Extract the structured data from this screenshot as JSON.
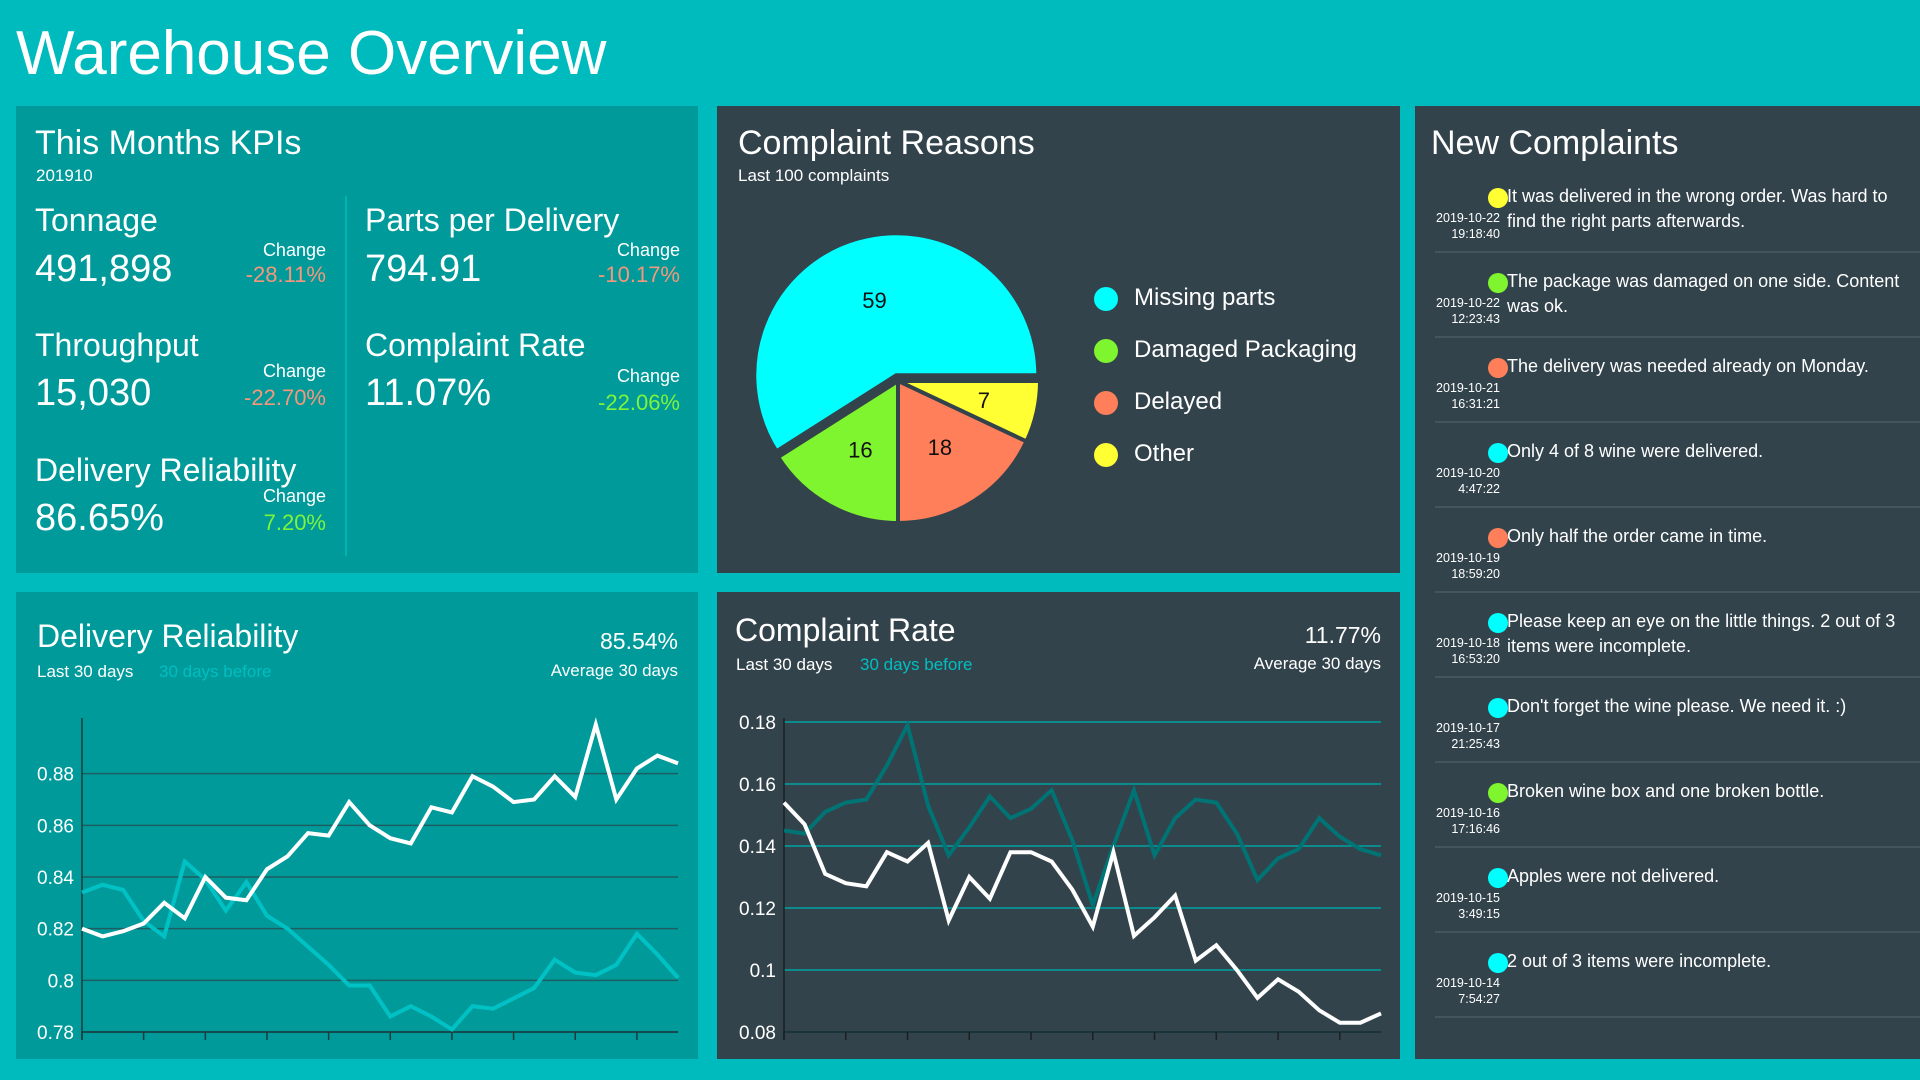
{
  "page": {
    "title": "Warehouse Overview"
  },
  "colors": {
    "background": "#00BBBE",
    "teal_panel": "#009A9B",
    "dark_panel": "#33434B",
    "negative": "#F4977A",
    "positive": "#7CF53A"
  },
  "kpis": {
    "title": "This Months KPIs",
    "period": "201910",
    "change_label": "Change",
    "items": [
      {
        "label": "Tonnage",
        "value": "491,898",
        "change": "-28.11%",
        "trend": "negative"
      },
      {
        "label": "Throughput",
        "value": "15,030",
        "change": "-22.70%",
        "trend": "negative"
      },
      {
        "label": "Delivery Reliability",
        "value": "86.65%",
        "change": "7.20%",
        "trend": "positive"
      },
      {
        "label": "Parts per Delivery",
        "value": "794.91",
        "change": "-10.17%",
        "trend": "negative"
      },
      {
        "label": "Complaint Rate",
        "value": "11.07%",
        "change": "-22.06%",
        "trend": "positive"
      }
    ]
  },
  "complaint_reasons": {
    "title": "Complaint Reasons",
    "subtitle": "Last 100 complaints"
  },
  "new_complaints": {
    "title": "New Complaints",
    "items": [
      {
        "date": "2019-10-22",
        "time": "19:18:40",
        "reason": "Other",
        "color": "#FFFF33",
        "text": "It was delivered in the wrong order. Was hard to find the right parts afterwards."
      },
      {
        "date": "2019-10-22",
        "time": "12:23:43",
        "reason": "Damaged Packaging",
        "color": "#7FF52F",
        "text": "The package was damaged on one side. Content was ok."
      },
      {
        "date": "2019-10-21",
        "time": "16:31:21",
        "reason": "Delayed",
        "color": "#FF7F5A",
        "text": "The delivery was needed already on Monday."
      },
      {
        "date": "2019-10-20",
        "time": "4:47:22",
        "reason": "Missing parts",
        "color": "#00FFFF",
        "text": "Only 4 of 8 wine were delivered."
      },
      {
        "date": "2019-10-19",
        "time": "18:59:20",
        "reason": "Delayed",
        "color": "#FF7F5A",
        "text": "Only half the order came in time."
      },
      {
        "date": "2019-10-18",
        "time": "16:53:20",
        "reason": "Missing parts",
        "color": "#00FFFF",
        "text": "Please keep an eye on the little things. 2 out of 3 items were incomplete."
      },
      {
        "date": "2019-10-17",
        "time": "21:25:43",
        "reason": "Missing parts",
        "color": "#00FFFF",
        "text": "Don't forget the wine please. We need it. :)"
      },
      {
        "date": "2019-10-16",
        "time": "17:16:46",
        "reason": "Damaged Packaging",
        "color": "#7FF52F",
        "text": "Broken wine box and one broken bottle."
      },
      {
        "date": "2019-10-15",
        "time": "3:49:15",
        "reason": "Missing parts",
        "color": "#00FFFF",
        "text": "Apples were not delivered."
      },
      {
        "date": "2019-10-14",
        "time": "7:54:27",
        "reason": "Missing parts",
        "color": "#00FFFF",
        "text": " 2 out of 3 items were incomplete."
      }
    ]
  },
  "delivery_chart": {
    "title": "Delivery Reliability",
    "legend_current": "Last 30 days",
    "legend_previous": "30 days before",
    "average_value": "85.54%",
    "average_label": "Average 30 days"
  },
  "complaint_chart": {
    "title": "Complaint Rate",
    "legend_current": "Last 30 days",
    "legend_previous": "30 days before",
    "average_value": "11.77%",
    "average_label": "Average 30 days"
  },
  "chart_data": [
    {
      "type": "pie",
      "title": "Complaint Reasons",
      "subtitle": "Last 100 complaints",
      "legend": "right",
      "slices": [
        {
          "label": "Missing parts",
          "value": 59,
          "color": "#00FFFF",
          "exploded": true
        },
        {
          "label": "Damaged Packaging",
          "value": 16,
          "color": "#7FF52F"
        },
        {
          "label": "Delayed",
          "value": 18,
          "color": "#FF7F5A"
        },
        {
          "label": "Other",
          "value": 7,
          "color": "#FFFF33"
        }
      ]
    },
    {
      "type": "line",
      "title": "Delivery Reliability",
      "ylim": [
        0.78,
        0.9
      ],
      "yticks": [
        "0.78",
        "0.8",
        "0.82",
        "0.84",
        "0.86",
        "0.88"
      ],
      "grid": true,
      "x": [
        1,
        2,
        3,
        4,
        5,
        6,
        7,
        8,
        9,
        10,
        11,
        12,
        13,
        14,
        15,
        16,
        17,
        18,
        19,
        20,
        21,
        22,
        23,
        24,
        25,
        26,
        27,
        28,
        29,
        30
      ],
      "series": [
        {
          "name": "30 days before",
          "color": "#00C2C4",
          "values": [
            0.834,
            0.837,
            0.835,
            0.823,
            0.817,
            0.846,
            0.839,
            0.827,
            0.838,
            0.825,
            0.82,
            0.813,
            0.806,
            0.798,
            0.798,
            0.786,
            0.79,
            0.786,
            0.781,
            0.79,
            0.789,
            0.793,
            0.797,
            0.808,
            0.803,
            0.802,
            0.806,
            0.818,
            0.81,
            0.801
          ]
        },
        {
          "name": "Last 30 days",
          "color": "#FFFFFF",
          "values": [
            0.82,
            0.817,
            0.819,
            0.822,
            0.83,
            0.824,
            0.84,
            0.832,
            0.831,
            0.843,
            0.848,
            0.857,
            0.856,
            0.869,
            0.86,
            0.855,
            0.853,
            0.867,
            0.865,
            0.879,
            0.875,
            0.869,
            0.87,
            0.879,
            0.871,
            0.899,
            0.87,
            0.882,
            0.887,
            0.884
          ]
        }
      ]
    },
    {
      "type": "line",
      "title": "Complaint Rate",
      "ylim": [
        0.08,
        0.18
      ],
      "yticks": [
        "0.08",
        "0.1",
        "0.12",
        "0.14",
        "0.16",
        "0.18"
      ],
      "grid": true,
      "x": [
        1,
        2,
        3,
        4,
        5,
        6,
        7,
        8,
        9,
        10,
        11,
        12,
        13,
        14,
        15,
        16,
        17,
        18,
        19,
        20,
        21,
        22,
        23,
        24,
        25,
        26,
        27,
        28,
        29,
        30
      ],
      "series": [
        {
          "name": "30 days before",
          "color": "#007375",
          "values": [
            0.145,
            0.144,
            0.151,
            0.154,
            0.155,
            0.166,
            0.179,
            0.153,
            0.137,
            0.146,
            0.156,
            0.149,
            0.152,
            0.158,
            0.142,
            0.121,
            0.14,
            0.158,
            0.137,
            0.149,
            0.155,
            0.154,
            0.144,
            0.129,
            0.136,
            0.139,
            0.149,
            0.143,
            0.139,
            0.137
          ]
        },
        {
          "name": "Last 30 days",
          "color": "#FFFFFF",
          "values": [
            0.154,
            0.147,
            0.131,
            0.128,
            0.127,
            0.138,
            0.135,
            0.141,
            0.116,
            0.13,
            0.123,
            0.138,
            0.138,
            0.135,
            0.126,
            0.114,
            0.138,
            0.111,
            0.117,
            0.124,
            0.103,
            0.108,
            0.1,
            0.091,
            0.097,
            0.093,
            0.087,
            0.083,
            0.083,
            0.086
          ]
        }
      ]
    }
  ]
}
